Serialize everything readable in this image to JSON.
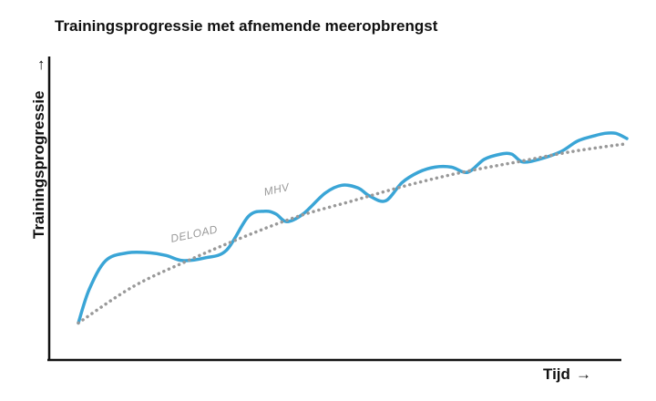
{
  "chart_data": {
    "type": "line",
    "title": "Trainingsprogressie met afnemende meeropbrengst",
    "xlabel": "Tijd",
    "ylabel": "Trainingsprogressie",
    "axis_arrow": "→",
    "xlim": [
      0,
      100
    ],
    "ylim": [
      0,
      100
    ],
    "ticks": false,
    "grid": false,
    "colors": {
      "actual": "#3aa5d6",
      "trend": "#999999",
      "axis": "#111111"
    },
    "series": [
      {
        "style": "solid",
        "x": [
          0,
          2,
          5,
          9,
          13,
          16,
          19,
          23,
          27,
          31,
          34,
          36,
          38,
          41,
          45,
          48,
          51,
          53,
          56,
          59,
          62,
          65,
          68,
          71,
          74,
          77,
          79,
          81,
          84,
          88,
          91,
          94,
          96,
          98,
          100
        ],
        "y": [
          9,
          22,
          33,
          36,
          36,
          35,
          33,
          34,
          37,
          50,
          52,
          51,
          48,
          51,
          59,
          62,
          61,
          58,
          56,
          63,
          67,
          69,
          69,
          67,
          72,
          74,
          74,
          71,
          72,
          75,
          79,
          81,
          82,
          82,
          80
        ]
      },
      {
        "style": "dotted",
        "x": [
          0,
          10,
          20,
          30,
          40,
          50,
          60,
          70,
          80,
          90,
          100
        ],
        "y": [
          9,
          23,
          33,
          42,
          50,
          56,
          62,
          67,
          71,
          75,
          78
        ]
      }
    ],
    "annotations": [
      {
        "text": "DELOAD",
        "x": 17,
        "y": 40
      },
      {
        "text": "MHV",
        "x": 34,
        "y": 58
      }
    ]
  }
}
